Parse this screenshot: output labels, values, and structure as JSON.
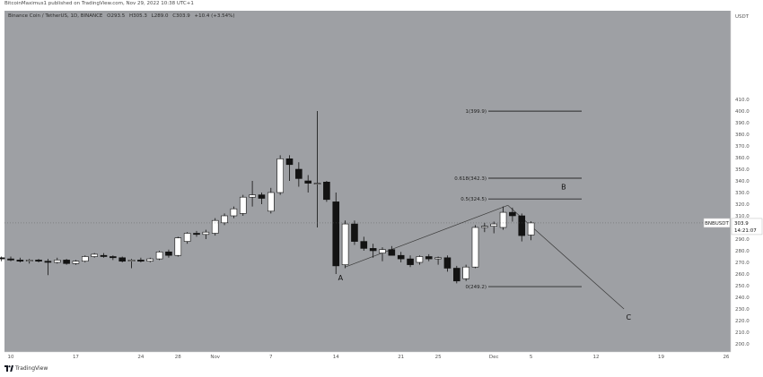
{
  "header": {
    "publisher": "BitcoinMaximus1 published on TradingView.com, Nov 29, 2022 10:38 UTC+1"
  },
  "symbol": {
    "title": "Binance Coin / TetherUS, 1D, BINANCE",
    "open": "O293.5",
    "high": "H305.3",
    "low": "L289.0",
    "close": "C303.9",
    "change": "+10.4 (+3.54%)"
  },
  "price_tag": {
    "symbol": "BNBUSDT",
    "price": "303.9",
    "countdown": "14:21:07"
  },
  "footer": {
    "brand": "TradingView"
  },
  "colors": {
    "background": "#9ea0a4",
    "bull": "#ffffff",
    "bear": "#131313",
    "line": "#2a2a2a"
  },
  "chart_data": {
    "type": "candlestick",
    "axis_currency": "USDT",
    "ylim": [
      195,
      420
    ],
    "y_ticks": [
      200,
      210,
      220,
      230,
      240,
      250,
      260,
      270,
      280,
      290,
      300,
      310,
      320,
      330,
      340,
      350,
      360,
      370,
      380,
      390,
      400,
      410
    ],
    "x_tick_labels": [
      {
        "label": "10",
        "day": 0
      },
      {
        "label": "17",
        "day": 7
      },
      {
        "label": "24",
        "day": 14
      },
      {
        "label": "28",
        "day": 18
      },
      {
        "label": "Nov",
        "day": 22
      },
      {
        "label": "7",
        "day": 28
      },
      {
        "label": "14",
        "day": 35
      },
      {
        "label": "21",
        "day": 42
      },
      {
        "label": "25",
        "day": 46
      },
      {
        "label": "Dec",
        "day": 52
      },
      {
        "label": "5",
        "day": 56
      },
      {
        "label": "12",
        "day": 63
      },
      {
        "label": "19",
        "day": 70
      },
      {
        "label": "26",
        "day": 77
      }
    ],
    "candles": [
      {
        "d": -1,
        "o": 274,
        "h": 275,
        "l": 271,
        "c": 273
      },
      {
        "d": 0,
        "o": 273,
        "h": 275,
        "l": 271,
        "c": 272
      },
      {
        "d": 1,
        "o": 272,
        "h": 274,
        "l": 270,
        "c": 271
      },
      {
        "d": 2,
        "o": 271,
        "h": 273,
        "l": 269,
        "c": 272
      },
      {
        "d": 3,
        "o": 272,
        "h": 273,
        "l": 270,
        "c": 271
      },
      {
        "d": 4,
        "o": 271,
        "h": 273,
        "l": 259,
        "c": 270
      },
      {
        "d": 5,
        "o": 270,
        "h": 274,
        "l": 269,
        "c": 272
      },
      {
        "d": 6,
        "o": 272,
        "h": 273,
        "l": 268,
        "c": 269
      },
      {
        "d": 7,
        "o": 269,
        "h": 272,
        "l": 268,
        "c": 271
      },
      {
        "d": 8,
        "o": 271,
        "h": 276,
        "l": 270,
        "c": 275
      },
      {
        "d": 9,
        "o": 275,
        "h": 278,
        "l": 274,
        "c": 277
      },
      {
        "d": 10,
        "o": 276,
        "h": 278,
        "l": 274,
        "c": 275
      },
      {
        "d": 11,
        "o": 275,
        "h": 276,
        "l": 272,
        "c": 274
      },
      {
        "d": 12,
        "o": 274,
        "h": 275,
        "l": 270,
        "c": 271
      },
      {
        "d": 13,
        "o": 271,
        "h": 273,
        "l": 265,
        "c": 272
      },
      {
        "d": 14,
        "o": 272,
        "h": 274,
        "l": 270,
        "c": 271
      },
      {
        "d": 15,
        "o": 271,
        "h": 274,
        "l": 270,
        "c": 273
      },
      {
        "d": 16,
        "o": 273,
        "h": 280,
        "l": 272,
        "c": 279
      },
      {
        "d": 17,
        "o": 279,
        "h": 281,
        "l": 274,
        "c": 276
      },
      {
        "d": 18,
        "o": 276,
        "h": 292,
        "l": 275,
        "c": 291
      },
      {
        "d": 19,
        "o": 288,
        "h": 296,
        "l": 286,
        "c": 295
      },
      {
        "d": 20,
        "o": 295,
        "h": 297,
        "l": 292,
        "c": 294
      },
      {
        "d": 21,
        "o": 294,
        "h": 298,
        "l": 290,
        "c": 296
      },
      {
        "d": 22,
        "o": 295,
        "h": 308,
        "l": 293,
        "c": 306
      },
      {
        "d": 23,
        "o": 304,
        "h": 312,
        "l": 302,
        "c": 310
      },
      {
        "d": 24,
        "o": 310,
        "h": 318,
        "l": 308,
        "c": 316
      },
      {
        "d": 25,
        "o": 312,
        "h": 328,
        "l": 310,
        "c": 326
      },
      {
        "d": 26,
        "o": 326,
        "h": 340,
        "l": 318,
        "c": 328
      },
      {
        "d": 27,
        "o": 328,
        "h": 330,
        "l": 320,
        "c": 325
      },
      {
        "d": 28,
        "o": 314,
        "h": 334,
        "l": 312,
        "c": 330
      },
      {
        "d": 29,
        "o": 330,
        "h": 362,
        "l": 328,
        "c": 359
      },
      {
        "d": 30,
        "o": 359,
        "h": 362,
        "l": 340,
        "c": 354
      },
      {
        "d": 31,
        "o": 350,
        "h": 356,
        "l": 335,
        "c": 342
      },
      {
        "d": 32,
        "o": 340,
        "h": 345,
        "l": 330,
        "c": 338
      },
      {
        "d": 33,
        "o": 338,
        "h": 400,
        "l": 300,
        "c": 338
      },
      {
        "d": 34,
        "o": 339,
        "h": 340,
        "l": 322,
        "c": 324
      },
      {
        "d": 35,
        "o": 322,
        "h": 330,
        "l": 260,
        "c": 267
      },
      {
        "d": 36,
        "o": 268,
        "h": 306,
        "l": 265,
        "c": 303
      },
      {
        "d": 37,
        "o": 303,
        "h": 306,
        "l": 285,
        "c": 288
      },
      {
        "d": 38,
        "o": 288,
        "h": 292,
        "l": 280,
        "c": 282
      },
      {
        "d": 39,
        "o": 282,
        "h": 286,
        "l": 274,
        "c": 280
      },
      {
        "d": 40,
        "o": 278,
        "h": 283,
        "l": 271,
        "c": 281
      },
      {
        "d": 41,
        "o": 281,
        "h": 284,
        "l": 276,
        "c": 276
      },
      {
        "d": 42,
        "o": 276,
        "h": 279,
        "l": 270,
        "c": 273
      },
      {
        "d": 43,
        "o": 273,
        "h": 276,
        "l": 266,
        "c": 268
      },
      {
        "d": 44,
        "o": 270,
        "h": 276,
        "l": 268,
        "c": 275
      },
      {
        "d": 45,
        "o": 275,
        "h": 277,
        "l": 271,
        "c": 273
      },
      {
        "d": 46,
        "o": 273,
        "h": 275,
        "l": 268,
        "c": 274
      },
      {
        "d": 47,
        "o": 274,
        "h": 276,
        "l": 262,
        "c": 265
      },
      {
        "d": 48,
        "o": 265,
        "h": 267,
        "l": 252,
        "c": 254
      },
      {
        "d": 49,
        "o": 256,
        "h": 268,
        "l": 254,
        "c": 266
      },
      {
        "d": 50,
        "o": 266,
        "h": 302,
        "l": 265,
        "c": 300
      },
      {
        "d": 51,
        "o": 300,
        "h": 304,
        "l": 296,
        "c": 301
      },
      {
        "d": 52,
        "o": 301,
        "h": 305,
        "l": 295,
        "c": 303
      },
      {
        "d": 53,
        "o": 300,
        "h": 318,
        "l": 298,
        "c": 313
      },
      {
        "d": 54,
        "o": 313,
        "h": 317,
        "l": 305,
        "c": 310
      },
      {
        "d": 55,
        "o": 310,
        "h": 312,
        "l": 288,
        "c": 293
      },
      {
        "d": 56,
        "o": 293.5,
        "h": 305.3,
        "l": 289,
        "c": 303.9
      }
    ],
    "fib_levels": [
      {
        "label": "1(399.9)",
        "price": 399.9
      },
      {
        "label": "0.618(342.3)",
        "price": 342.3
      },
      {
        "label": "0.5(324.5)",
        "price": 324.5
      },
      {
        "label": "0(249.2)",
        "price": 249.2
      }
    ],
    "trend_lines": [
      {
        "from": {
          "d": 36,
          "p": 266
        },
        "to": {
          "d": 53.5,
          "p": 319
        }
      },
      {
        "from": {
          "d": 53.5,
          "p": 319
        },
        "to": {
          "d": 66,
          "p": 230
        }
      }
    ],
    "annotations": [
      {
        "text": "A",
        "d": 35.5,
        "p": 257
      },
      {
        "text": "B",
        "d": 59.5,
        "p": 335
      },
      {
        "text": "C",
        "d": 66.5,
        "p": 223
      }
    ]
  }
}
